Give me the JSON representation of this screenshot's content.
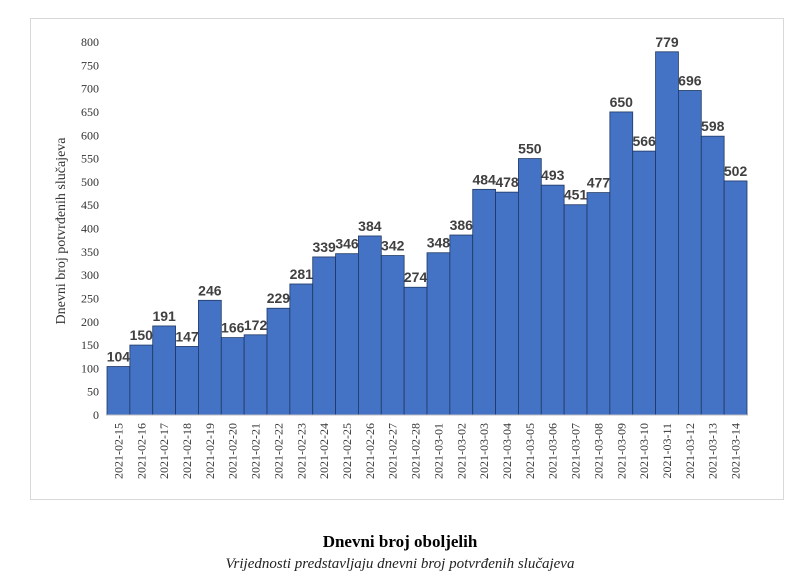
{
  "chart_data": {
    "type": "bar",
    "categories": [
      "2021-02-15",
      "2021-02-16",
      "2021-02-17",
      "2021-02-18",
      "2021-02-19",
      "2021-02-20",
      "2021-02-21",
      "2021-02-22",
      "2021-02-23",
      "2021-02-24",
      "2021-02-25",
      "2021-02-26",
      "2021-02-27",
      "2021-02-28",
      "2021-03-01",
      "2021-03-02",
      "2021-03-03",
      "2021-03-04",
      "2021-03-05",
      "2021-03-06",
      "2021-03-07",
      "2021-03-08",
      "2021-03-09",
      "2021-03-10",
      "2021-03-11",
      "2021-03-12",
      "2021-03-13",
      "2021-03-14"
    ],
    "values": [
      104,
      150,
      191,
      147,
      246,
      166,
      172,
      229,
      281,
      339,
      346,
      384,
      342,
      274,
      348,
      386,
      484,
      478,
      550,
      493,
      451,
      477,
      650,
      566,
      779,
      696,
      598,
      502
    ],
    "ylabel": "Dnevni broj potvrđenih slučajeva",
    "xlabel": "",
    "ylim": [
      0,
      800
    ],
    "yticks": [
      0,
      50,
      100,
      150,
      200,
      250,
      300,
      350,
      400,
      450,
      500,
      550,
      600,
      650,
      700,
      750,
      800
    ],
    "bar_color": "#4472c4",
    "bar_edge_color": "#1f3864",
    "grid": false,
    "legend": false,
    "data_labels": true
  },
  "caption": {
    "title": "Dnevni broj oboljelih",
    "subtitle": "Vrijednosti predstavljaju dnevni broj potvrđenih slučajeva"
  }
}
